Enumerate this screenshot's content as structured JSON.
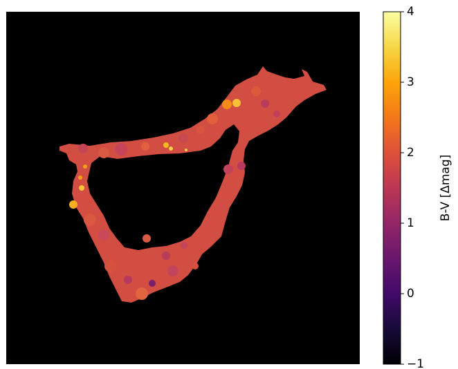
{
  "chart_data": {
    "type": "heatmap",
    "title": "",
    "xlabel": "",
    "ylabel": "",
    "axes_ticks_visible": false,
    "background_color": "#000000",
    "colormap": "inferno",
    "colorbar": {
      "label": "B-V [Δmag]",
      "range": [
        -1,
        4
      ],
      "ticks": [
        {
          "value": 4,
          "label": "4"
        },
        {
          "value": 3,
          "label": "3"
        },
        {
          "value": 2,
          "label": "2"
        },
        {
          "value": 1,
          "label": "1"
        },
        {
          "value": 0,
          "label": "0"
        },
        {
          "value": -1,
          "label": "−1"
        }
      ],
      "placement": "right"
    },
    "dominant_value": 2.0,
    "highlight_value": 3.3
  }
}
